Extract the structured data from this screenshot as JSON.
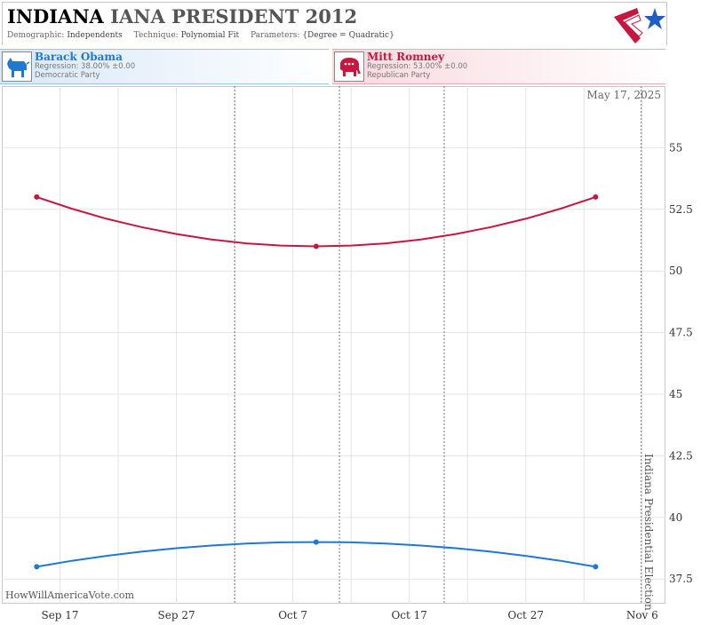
{
  "header": {
    "title_state": "INDIANA",
    "title_race": "IANA PRESIDENT 2012",
    "demographic_label": "Demographic:",
    "demographic_value": "Independents",
    "technique_label": "Technique:",
    "technique_value": "Polynomial Fit",
    "parameters_label": "Parameters:",
    "parameters_value": "{Degree = Quadratic}"
  },
  "candidates": [
    {
      "name": "Barack Obama",
      "regression": "Regression: 38.00% ±0.00",
      "party": "Democratic Party",
      "color": "#1f78d4",
      "icon": "donkey-icon"
    },
    {
      "name": "Mitt Romney",
      "regression": "Regression: 53.00% ±0.00",
      "party": "Republican Party",
      "color": "#c8163e",
      "icon": "elephant-icon"
    }
  ],
  "chart_data": {
    "type": "line",
    "x_tick_labels": [
      "Sep 17",
      "Sep 27",
      "Oct 7",
      "Oct 17",
      "Oct 27",
      "Nov 6"
    ],
    "y_ticks": [
      37.5,
      40,
      42.5,
      45,
      47.5,
      50,
      52.5,
      55
    ],
    "y_tick_labels": [
      "37.5",
      "40",
      "42.5",
      "45",
      "47.5",
      "50",
      "52.5",
      "55"
    ],
    "ylim": [
      36.5,
      57.5
    ],
    "xlim": [
      "2012-09-12",
      "2012-11-08"
    ],
    "date_label": "May 17, 2025",
    "election_label": "Indiana Presidential Election",
    "election_date": "2012-11-06",
    "watermark": "HowWillAmericaVote.com",
    "poll_dates": [
      "2012-10-02",
      "2012-10-11",
      "2012-10-20"
    ],
    "series": [
      {
        "name": "Barack Obama",
        "color": "#1f78d4",
        "x": [
          "2012-09-15",
          "2012-09-18",
          "2012-09-21",
          "2012-09-24",
          "2012-09-27",
          "2012-09-30",
          "2012-10-03",
          "2012-10-06",
          "2012-10-09",
          "2012-10-12",
          "2012-10-15",
          "2012-10-18",
          "2012-10-21",
          "2012-10-24",
          "2012-10-27",
          "2012-10-30",
          "2012-11-02"
        ],
        "values": [
          38.0,
          38.24,
          38.44,
          38.61,
          38.75,
          38.86,
          38.94,
          38.99,
          39.0,
          38.99,
          38.94,
          38.86,
          38.75,
          38.61,
          38.44,
          38.24,
          38.0
        ],
        "markers": [
          [
            "2012-09-15",
            38.0
          ],
          [
            "2012-10-09",
            39.0
          ],
          [
            "2012-11-02",
            38.0
          ]
        ]
      },
      {
        "name": "Mitt Romney",
        "color": "#c8163e",
        "x": [
          "2012-09-15",
          "2012-09-18",
          "2012-09-21",
          "2012-09-24",
          "2012-09-27",
          "2012-09-30",
          "2012-10-03",
          "2012-10-06",
          "2012-10-09",
          "2012-10-12",
          "2012-10-15",
          "2012-10-18",
          "2012-10-21",
          "2012-10-24",
          "2012-10-27",
          "2012-10-30",
          "2012-11-02"
        ],
        "values": [
          53.0,
          52.53,
          52.12,
          51.78,
          51.5,
          51.28,
          51.12,
          51.03,
          51.0,
          51.03,
          51.12,
          51.28,
          51.5,
          51.78,
          52.12,
          52.53,
          53.0
        ],
        "markers": [
          [
            "2012-09-15",
            53.0
          ],
          [
            "2012-10-09",
            51.0
          ],
          [
            "2012-11-02",
            53.0
          ]
        ]
      }
    ]
  }
}
